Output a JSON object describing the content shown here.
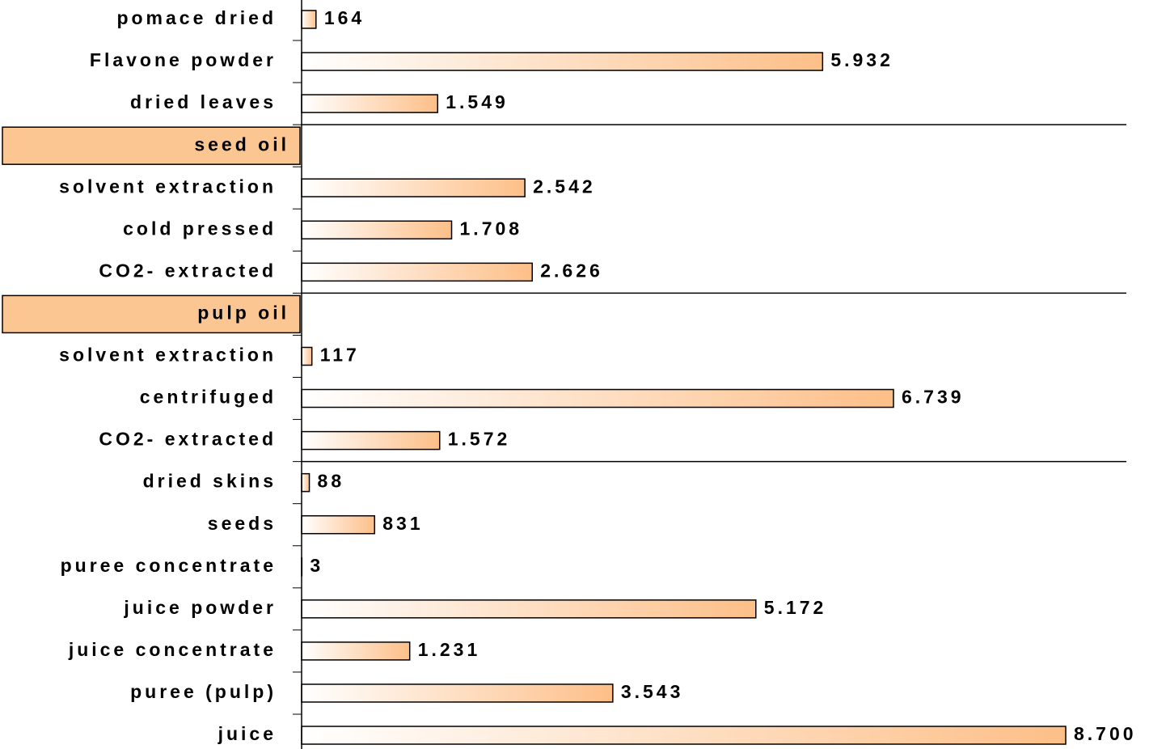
{
  "chart_data": {
    "type": "bar",
    "orientation": "horizontal",
    "categories": [
      "pomace dried",
      "Flavone powder",
      "dried leaves",
      "seed oil",
      "solvent extraction",
      "cold pressed",
      "CO2- extracted",
      "pulp oil",
      "solvent extraction",
      "centrifuged",
      "CO2- extracted",
      "dried skins",
      "seeds",
      "puree concentrate",
      "juice powder",
      "juice concentrate",
      "puree (pulp)",
      "juice"
    ],
    "values": [
      164,
      5932,
      1549,
      null,
      2542,
      1708,
      2626,
      null,
      117,
      6739,
      1572,
      88,
      831,
      3,
      5172,
      1231,
      3543,
      8700
    ],
    "value_labels": [
      "164",
      "5.932",
      "1.549",
      null,
      "2.542",
      "1.708",
      "2.626",
      null,
      "117",
      "6.739",
      "1.572",
      "88",
      "831",
      "3",
      "5.172",
      "1.231",
      "3.543",
      "8.700"
    ],
    "color": "#fdbf88",
    "header_color": "#fcc692",
    "xlim": [
      0,
      8700
    ]
  }
}
